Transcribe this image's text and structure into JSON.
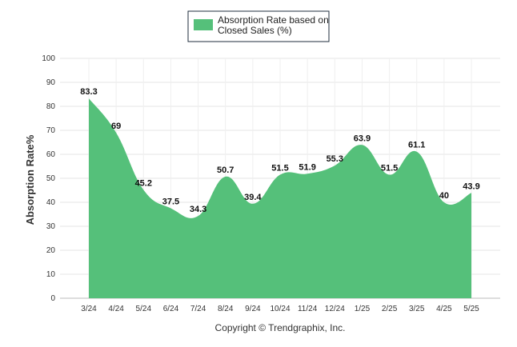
{
  "chart_data": {
    "type": "area",
    "categories": [
      "3/24",
      "4/24",
      "5/24",
      "6/24",
      "7/24",
      "8/24",
      "9/24",
      "10/24",
      "11/24",
      "12/24",
      "1/25",
      "2/25",
      "3/25",
      "4/25",
      "5/25"
    ],
    "series": [
      {
        "name": "Absorption Rate based on Closed Sales (%)",
        "values": [
          83.3,
          69,
          45.2,
          37.5,
          34.3,
          50.7,
          39.4,
          51.5,
          51.9,
          55.3,
          63.9,
          51.5,
          61.1,
          40,
          43.9
        ],
        "labels": [
          "83.3",
          "69",
          "45.2",
          "37.5",
          "34.3",
          "50.7",
          "39.4",
          "51.5",
          "51.9",
          "55.3",
          "63.9",
          "51.5",
          "61.1",
          "40",
          "43.9"
        ],
        "color": "#55c07a"
      }
    ],
    "ylabel": "Absorption Rate%",
    "xlabel": "",
    "ylim": [
      0,
      100
    ],
    "yticks": [
      "0",
      "10",
      "20",
      "30",
      "40",
      "50",
      "60",
      "70",
      "80",
      "90",
      "100"
    ],
    "grid": true,
    "legend_position": "top-center"
  },
  "legend": {
    "line1": "Absorption Rate based on",
    "line2": "Closed Sales (%)"
  },
  "footer": "Copyright © Trendgraphix, Inc."
}
